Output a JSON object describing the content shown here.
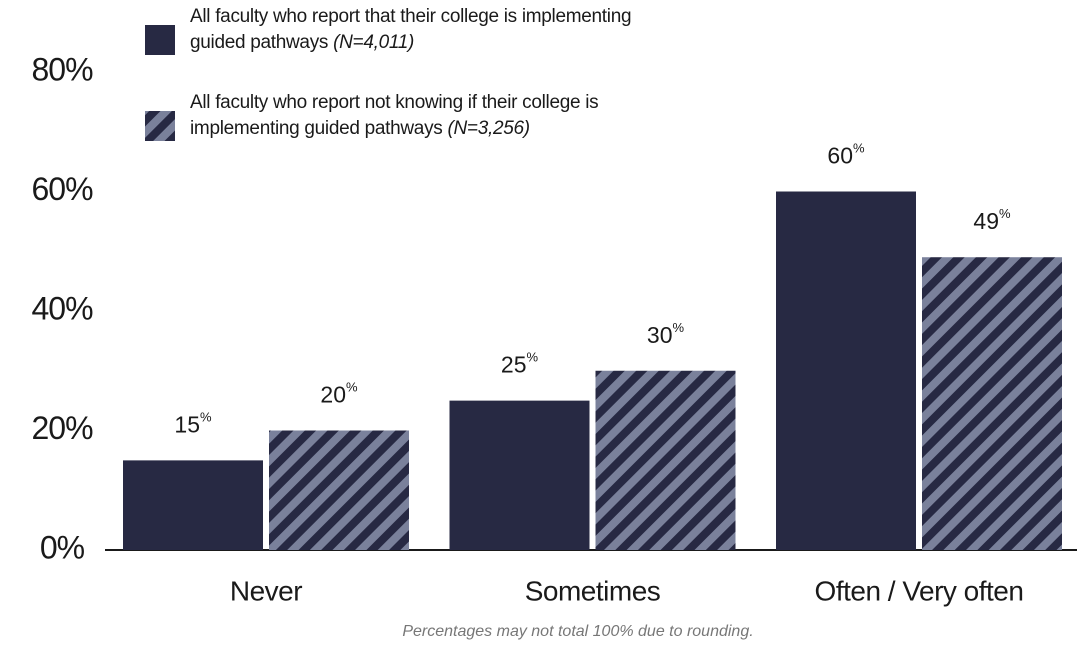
{
  "chart_data": {
    "type": "bar",
    "categories": [
      "Never",
      "Sometimes",
      "Often / Very often"
    ],
    "series": [
      {
        "name": "All faculty who report that their college is implementing guided pathways",
        "note": "(N=4,011)",
        "color": "#272943",
        "pattern": "solid",
        "values": [
          15,
          25,
          60
        ],
        "value_labels": [
          "15%",
          "25%",
          "60%"
        ]
      },
      {
        "name": "All faculty who report not knowing if their college is implementing guided pathways",
        "note": "(N=3,256)",
        "color": "#272943",
        "pattern": "hatch",
        "values": [
          20,
          30,
          49
        ],
        "value_labels": [
          "20%",
          "30%",
          "49%"
        ]
      }
    ],
    "ylim": [
      0,
      80
    ],
    "yticks": [
      {
        "value": 0,
        "label": "0%"
      },
      {
        "value": 20,
        "label": "20%"
      },
      {
        "value": 40,
        "label": "40%"
      },
      {
        "value": 60,
        "label": "60%"
      },
      {
        "value": 80,
        "label": "80%"
      }
    ],
    "grid": false,
    "footnote": "Percentages may not total 100% due to rounding."
  }
}
